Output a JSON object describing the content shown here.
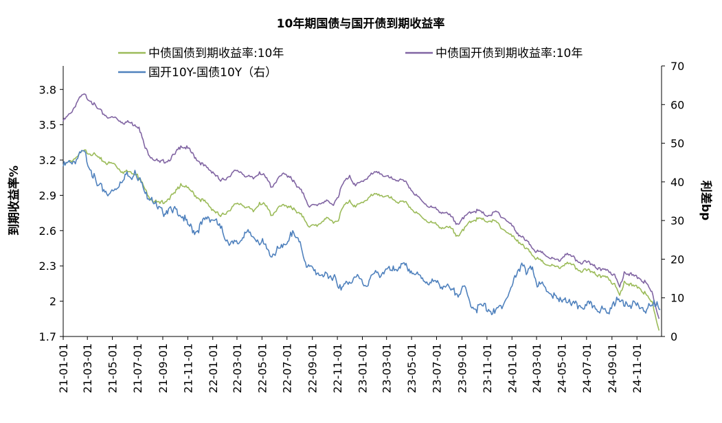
{
  "chart_data": {
    "type": "line",
    "title": "10年期国债与国开债到期收益率",
    "ylabel_left": "到期收益率%",
    "ylabel_right": "利差bp",
    "ylim_left": [
      1.7,
      4.0
    ],
    "ylim_right": [
      0,
      70
    ],
    "yticks_left": [
      "1.7",
      "2",
      "2.3",
      "2.6",
      "2.9",
      "3.2",
      "3.5",
      "3.8"
    ],
    "yticks_right": [
      "0",
      "10",
      "20",
      "30",
      "40",
      "50",
      "60",
      "70"
    ],
    "xticks": [
      "21-01-01",
      "21-03-01",
      "21-05-01",
      "21-07-01",
      "21-09-01",
      "21-11-01",
      "22-01-01",
      "22-03-01",
      "22-05-01",
      "22-07-01",
      "22-09-01",
      "22-11-01",
      "23-01-01",
      "23-03-01",
      "23-05-01",
      "23-07-01",
      "23-09-01",
      "23-11-01",
      "24-01-01",
      "24-03-01",
      "24-05-01",
      "24-07-01",
      "24-09-01",
      "24-11-01"
    ],
    "legend_placement": "top",
    "series": [
      {
        "name": "中债国债到期收益率:10年",
        "axis": "left",
        "color": "#9bbb59",
        "points": [
          [
            "21-01-01",
            3.15
          ],
          [
            "21-02-01",
            3.22
          ],
          [
            "21-02-20",
            3.28
          ],
          [
            "21-03-15",
            3.25
          ],
          [
            "21-04-01",
            3.21
          ],
          [
            "21-04-20",
            3.17
          ],
          [
            "21-05-05",
            3.17
          ],
          [
            "21-05-25",
            3.1
          ],
          [
            "21-06-15",
            3.1
          ],
          [
            "21-07-01",
            3.08
          ],
          [
            "21-07-20",
            2.95
          ],
          [
            "21-08-05",
            2.86
          ],
          [
            "21-08-25",
            2.83
          ],
          [
            "21-09-15",
            2.87
          ],
          [
            "21-10-01",
            2.92
          ],
          [
            "21-10-15",
            3.0
          ],
          [
            "21-10-25",
            2.97
          ],
          [
            "21-11-05",
            2.95
          ],
          [
            "21-11-25",
            2.88
          ],
          [
            "21-12-15",
            2.84
          ],
          [
            "22-01-01",
            2.78
          ],
          [
            "22-01-20",
            2.72
          ],
          [
            "22-02-05",
            2.76
          ],
          [
            "22-02-20",
            2.81
          ],
          [
            "22-03-10",
            2.83
          ],
          [
            "22-03-25",
            2.8
          ],
          [
            "22-04-10",
            2.76
          ],
          [
            "22-04-25",
            2.84
          ],
          [
            "22-05-10",
            2.81
          ],
          [
            "22-05-25",
            2.73
          ],
          [
            "22-06-10",
            2.8
          ],
          [
            "22-06-25",
            2.81
          ],
          [
            "22-07-10",
            2.81
          ],
          [
            "22-07-25",
            2.75
          ],
          [
            "22-08-10",
            2.72
          ],
          [
            "22-08-25",
            2.63
          ],
          [
            "22-09-15",
            2.65
          ],
          [
            "22-10-01",
            2.7
          ],
          [
            "22-10-20",
            2.68
          ],
          [
            "22-11-01",
            2.68
          ],
          [
            "22-11-15",
            2.8
          ],
          [
            "22-12-01",
            2.86
          ],
          [
            "22-12-15",
            2.8
          ],
          [
            "23-01-01",
            2.84
          ],
          [
            "23-01-20",
            2.89
          ],
          [
            "23-02-10",
            2.91
          ],
          [
            "23-02-25",
            2.89
          ],
          [
            "23-03-15",
            2.87
          ],
          [
            "23-04-01",
            2.84
          ],
          [
            "23-04-20",
            2.83
          ],
          [
            "23-05-10",
            2.75
          ],
          [
            "23-05-25",
            2.72
          ],
          [
            "23-06-15",
            2.67
          ],
          [
            "23-07-01",
            2.65
          ],
          [
            "23-07-20",
            2.62
          ],
          [
            "23-08-05",
            2.62
          ],
          [
            "23-08-20",
            2.56
          ],
          [
            "23-09-05",
            2.6
          ],
          [
            "23-09-20",
            2.68
          ],
          [
            "23-10-10",
            2.7
          ],
          [
            "23-10-25",
            2.69
          ],
          [
            "23-11-10",
            2.68
          ],
          [
            "23-11-25",
            2.67
          ],
          [
            "23-12-15",
            2.6
          ],
          [
            "24-01-01",
            2.55
          ],
          [
            "24-01-15",
            2.52
          ],
          [
            "24-02-01",
            2.45
          ],
          [
            "24-02-15",
            2.42
          ],
          [
            "24-03-01",
            2.36
          ],
          [
            "24-03-20",
            2.32
          ],
          [
            "24-04-05",
            2.3
          ],
          [
            "24-04-25",
            2.28
          ],
          [
            "24-05-10",
            2.32
          ],
          [
            "24-05-25",
            2.31
          ],
          [
            "24-06-15",
            2.26
          ],
          [
            "24-07-01",
            2.26
          ],
          [
            "24-07-20",
            2.25
          ],
          [
            "24-08-05",
            2.2
          ],
          [
            "24-08-20",
            2.21
          ],
          [
            "24-09-05",
            2.15
          ],
          [
            "24-09-20",
            2.05
          ],
          [
            "24-10-01",
            2.17
          ],
          [
            "24-10-20",
            2.13
          ],
          [
            "24-11-05",
            2.12
          ],
          [
            "24-11-25",
            2.05
          ],
          [
            "24-12-10",
            1.97
          ],
          [
            "24-12-25",
            1.75
          ]
        ]
      },
      {
        "name": "中债国开债到期收益率:10年",
        "axis": "left",
        "color": "#8064a2",
        "points": [
          [
            "21-01-01",
            3.53
          ],
          [
            "21-01-20",
            3.6
          ],
          [
            "21-02-05",
            3.7
          ],
          [
            "21-02-20",
            3.76
          ],
          [
            "21-03-10",
            3.7
          ],
          [
            "21-03-25",
            3.64
          ],
          [
            "21-04-10",
            3.59
          ],
          [
            "21-04-25",
            3.56
          ],
          [
            "21-05-10",
            3.56
          ],
          [
            "21-05-25",
            3.52
          ],
          [
            "21-06-10",
            3.52
          ],
          [
            "21-06-25",
            3.5
          ],
          [
            "21-07-05",
            3.48
          ],
          [
            "21-07-20",
            3.3
          ],
          [
            "21-08-05",
            3.22
          ],
          [
            "21-08-25",
            3.18
          ],
          [
            "21-09-15",
            3.2
          ],
          [
            "21-10-01",
            3.25
          ],
          [
            "21-10-15",
            3.32
          ],
          [
            "21-11-01",
            3.3
          ],
          [
            "21-11-20",
            3.22
          ],
          [
            "21-12-10",
            3.15
          ],
          [
            "22-01-01",
            3.1
          ],
          [
            "22-01-20",
            3.02
          ],
          [
            "22-02-05",
            3.05
          ],
          [
            "22-02-20",
            3.1
          ],
          [
            "22-03-10",
            3.1
          ],
          [
            "22-03-25",
            3.06
          ],
          [
            "22-04-10",
            3.04
          ],
          [
            "22-04-25",
            3.1
          ],
          [
            "22-05-10",
            3.05
          ],
          [
            "22-05-25",
            2.97
          ],
          [
            "22-06-10",
            3.05
          ],
          [
            "22-06-25",
            3.08
          ],
          [
            "22-07-10",
            3.06
          ],
          [
            "22-07-25",
            2.97
          ],
          [
            "22-08-10",
            2.92
          ],
          [
            "22-08-25",
            2.8
          ],
          [
            "22-09-10",
            2.82
          ],
          [
            "22-10-01",
            2.85
          ],
          [
            "22-10-20",
            2.82
          ],
          [
            "22-11-01",
            2.88
          ],
          [
            "22-11-15",
            3.0
          ],
          [
            "22-12-01",
            3.07
          ],
          [
            "22-12-15",
            2.98
          ],
          [
            "23-01-01",
            3.02
          ],
          [
            "23-01-20",
            3.07
          ],
          [
            "23-02-10",
            3.1
          ],
          [
            "23-02-25",
            3.06
          ],
          [
            "23-03-15",
            3.04
          ],
          [
            "23-04-01",
            3.03
          ],
          [
            "23-04-20",
            3.0
          ],
          [
            "23-05-10",
            2.9
          ],
          [
            "23-05-25",
            2.86
          ],
          [
            "23-06-15",
            2.8
          ],
          [
            "23-07-01",
            2.78
          ],
          [
            "23-07-20",
            2.75
          ],
          [
            "23-08-05",
            2.72
          ],
          [
            "23-08-20",
            2.66
          ],
          [
            "23-09-05",
            2.7
          ],
          [
            "23-09-20",
            2.76
          ],
          [
            "23-10-10",
            2.77
          ],
          [
            "23-10-25",
            2.74
          ],
          [
            "23-11-10",
            2.73
          ],
          [
            "23-11-25",
            2.76
          ],
          [
            "23-12-15",
            2.7
          ],
          [
            "24-01-01",
            2.64
          ],
          [
            "24-01-15",
            2.58
          ],
          [
            "24-02-01",
            2.52
          ],
          [
            "24-02-15",
            2.48
          ],
          [
            "24-03-01",
            2.42
          ],
          [
            "24-03-20",
            2.4
          ],
          [
            "24-04-05",
            2.36
          ],
          [
            "24-04-25",
            2.34
          ],
          [
            "24-05-10",
            2.4
          ],
          [
            "24-05-25",
            2.38
          ],
          [
            "24-06-15",
            2.33
          ],
          [
            "24-07-01",
            2.33
          ],
          [
            "24-07-20",
            2.31
          ],
          [
            "24-08-05",
            2.26
          ],
          [
            "24-08-20",
            2.27
          ],
          [
            "24-09-05",
            2.23
          ],
          [
            "24-09-20",
            2.12
          ],
          [
            "24-10-01",
            2.25
          ],
          [
            "24-10-20",
            2.22
          ],
          [
            "24-11-05",
            2.2
          ],
          [
            "24-11-25",
            2.15
          ],
          [
            "24-12-10",
            2.05
          ],
          [
            "24-12-25",
            1.85
          ]
        ]
      },
      {
        "name": "国开10Y-国债10Y（右）",
        "axis": "right",
        "color": "#4f81bd",
        "points": [
          [
            "21-01-01",
            44
          ],
          [
            "21-01-20",
            45
          ],
          [
            "21-02-05",
            46
          ],
          [
            "21-02-20",
            48
          ],
          [
            "21-03-10",
            43
          ],
          [
            "21-03-25",
            39
          ],
          [
            "21-04-10",
            38
          ],
          [
            "21-04-25",
            37
          ],
          [
            "21-05-10",
            38
          ],
          [
            "21-05-20",
            40
          ],
          [
            "21-06-01",
            42
          ],
          [
            "21-06-15",
            41
          ],
          [
            "21-06-25",
            43
          ],
          [
            "21-07-05",
            41
          ],
          [
            "21-07-20",
            37
          ],
          [
            "21-08-05",
            36
          ],
          [
            "21-08-20",
            33
          ],
          [
            "21-09-01",
            32
          ],
          [
            "21-09-15",
            33
          ],
          [
            "21-09-25",
            32
          ],
          [
            "21-10-05",
            33
          ],
          [
            "21-10-20",
            31
          ],
          [
            "21-11-01",
            29
          ],
          [
            "21-11-20",
            27
          ],
          [
            "21-12-05",
            29
          ],
          [
            "21-12-20",
            31
          ],
          [
            "22-01-05",
            30
          ],
          [
            "22-01-20",
            28
          ],
          [
            "22-02-05",
            25
          ],
          [
            "22-02-20",
            24
          ],
          [
            "22-03-05",
            24
          ],
          [
            "22-03-20",
            27
          ],
          [
            "22-04-05",
            26
          ],
          [
            "22-04-20",
            25
          ],
          [
            "22-05-05",
            24
          ],
          [
            "22-05-20",
            21
          ],
          [
            "22-06-05",
            22
          ],
          [
            "22-06-20",
            23
          ],
          [
            "22-07-01",
            24
          ],
          [
            "22-07-10",
            27
          ],
          [
            "22-07-20",
            26
          ],
          [
            "22-08-05",
            23
          ],
          [
            "22-08-20",
            18
          ],
          [
            "22-09-05",
            17
          ],
          [
            "22-09-25",
            16
          ],
          [
            "22-10-10",
            15
          ],
          [
            "22-10-25",
            16
          ],
          [
            "22-11-10",
            12
          ],
          [
            "22-11-25",
            14
          ],
          [
            "22-12-10",
            15
          ],
          [
            "22-12-25",
            15
          ],
          [
            "23-01-10",
            13
          ],
          [
            "23-01-25",
            16
          ],
          [
            "23-02-10",
            16
          ],
          [
            "23-02-25",
            17
          ],
          [
            "23-03-15",
            17
          ],
          [
            "23-04-01",
            18
          ],
          [
            "23-04-20",
            18
          ],
          [
            "23-05-10",
            16
          ],
          [
            "23-05-25",
            15
          ],
          [
            "23-06-15",
            14
          ],
          [
            "23-07-01",
            14
          ],
          [
            "23-07-20",
            13
          ],
          [
            "23-08-05",
            12
          ],
          [
            "23-08-20",
            11
          ],
          [
            "23-09-05",
            13
          ],
          [
            "23-09-20",
            9
          ],
          [
            "23-10-05",
            7
          ],
          [
            "23-10-20",
            8
          ],
          [
            "23-11-05",
            7
          ],
          [
            "23-11-20",
            6
          ],
          [
            "23-12-05",
            8
          ],
          [
            "23-12-20",
            10
          ],
          [
            "24-01-01",
            13
          ],
          [
            "24-01-15",
            17
          ],
          [
            "24-01-25",
            19
          ],
          [
            "24-02-05",
            16
          ],
          [
            "24-02-20",
            18
          ],
          [
            "24-03-05",
            13
          ],
          [
            "24-03-20",
            13
          ],
          [
            "24-04-05",
            11
          ],
          [
            "24-04-25",
            9
          ],
          [
            "24-05-10",
            10
          ],
          [
            "24-05-25",
            8
          ],
          [
            "24-06-15",
            8
          ],
          [
            "24-07-01",
            8
          ],
          [
            "24-07-20",
            8
          ],
          [
            "24-08-05",
            7
          ],
          [
            "24-08-20",
            6
          ],
          [
            "24-09-05",
            9
          ],
          [
            "24-09-20",
            9
          ],
          [
            "24-10-05",
            9
          ],
          [
            "24-10-20",
            8
          ],
          [
            "24-11-05",
            8
          ],
          [
            "24-11-25",
            7
          ],
          [
            "24-12-10",
            8
          ],
          [
            "24-12-20",
            9
          ],
          [
            "24-12-28",
            7
          ]
        ]
      }
    ]
  }
}
